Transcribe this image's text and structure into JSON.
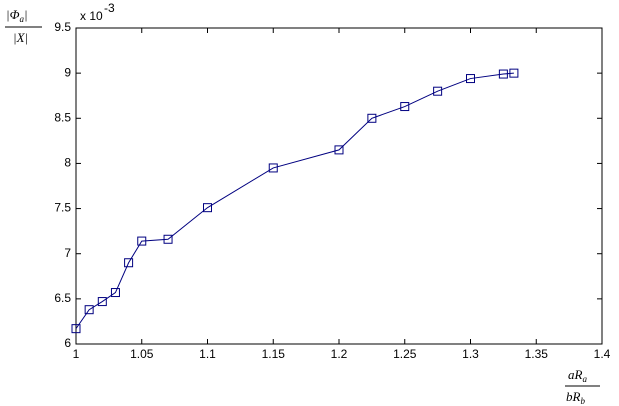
{
  "chart_data": {
    "type": "line",
    "y_label": {
      "numerator": [
        "|Φ",
        "a",
        "|"
      ],
      "denominator": "|X|"
    },
    "x_label": {
      "numerator": [
        "aR",
        "a"
      ],
      "denominator": [
        "bR",
        "b"
      ]
    },
    "y_scale": {
      "base": "x 10",
      "exponent": "-3"
    },
    "x": [
      1.0,
      1.01,
      1.02,
      1.03,
      1.04,
      1.05,
      1.07,
      1.1,
      1.15,
      1.2,
      1.225,
      1.25,
      1.275,
      1.3,
      1.325,
      1.333
    ],
    "series": [
      {
        "color": "#000080",
        "marker": "square",
        "values": [
          6.17,
          6.38,
          6.47,
          6.57,
          6.9,
          7.14,
          7.16,
          7.51,
          7.95,
          8.15,
          8.5,
          8.63,
          8.8,
          8.94,
          8.99,
          9.0
        ]
      }
    ],
    "xlim": [
      1,
      1.4
    ],
    "xticks": [
      1,
      1.05,
      1.1,
      1.15,
      1.2,
      1.25,
      1.3,
      1.35,
      1.4
    ],
    "ylim": [
      6,
      9.5
    ],
    "yticks": [
      6,
      6.5,
      7,
      7.5,
      8,
      8.5,
      9,
      9.5
    ],
    "grid": false
  }
}
